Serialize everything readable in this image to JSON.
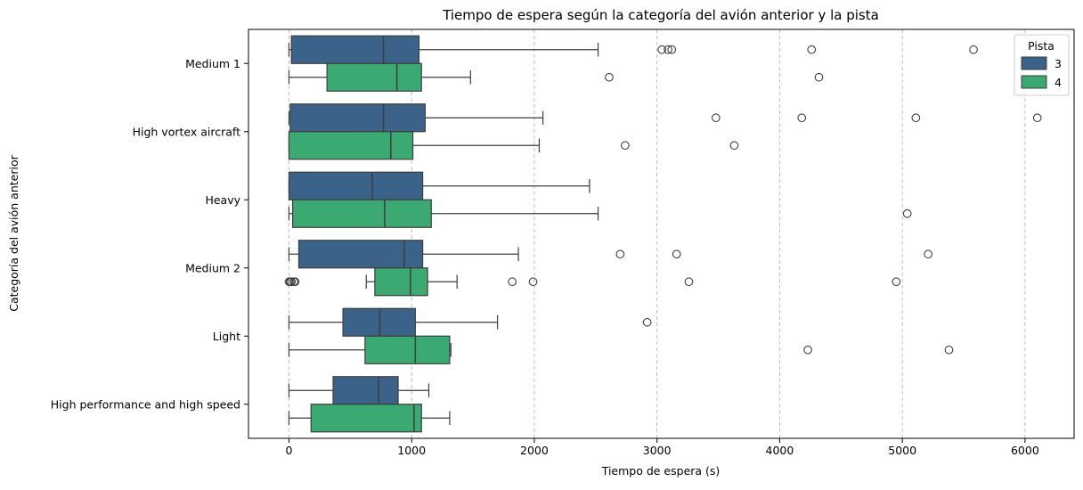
{
  "chart_data": {
    "type": "boxplot",
    "orientation": "horizontal",
    "title": "Tiempo de espera según la categoría del avión anterior y la pista",
    "xlabel": "Tiempo de espera (s)",
    "ylabel": "Categoría del avión anterior",
    "xlim": [
      -330,
      6400
    ],
    "x_ticks": [
      0,
      1000,
      2000,
      3000,
      4000,
      5000,
      6000
    ],
    "x_tick_labels": [
      "0",
      "1000",
      "2000",
      "3000",
      "4000",
      "5000",
      "6000"
    ],
    "grid": "x-dashed",
    "legend": {
      "title": "Pista",
      "placement": "top-right"
    },
    "categories": [
      "Medium 1",
      "High vortex aircraft",
      "Heavy",
      "Medium 2",
      "Light",
      "High performance and high speed"
    ],
    "series": [
      {
        "name": "3",
        "color": "#3b638a",
        "boxes": [
          {
            "whislo": 0,
            "q1": 20,
            "median": 770,
            "q3": 1060,
            "whishi": 2520,
            "fliers": [
              3040,
              3090,
              3120,
              4260,
              5580
            ]
          },
          {
            "whislo": 0,
            "q1": 10,
            "median": 770,
            "q3": 1110,
            "whishi": 2070,
            "fliers": [
              3480,
              4180,
              5110,
              6100
            ]
          },
          {
            "whislo": 0,
            "q1": 0,
            "median": 680,
            "q3": 1090,
            "whishi": 2450,
            "fliers": []
          },
          {
            "whislo": 0,
            "q1": 80,
            "median": 940,
            "q3": 1090,
            "whishi": 1870,
            "fliers": [
              2700,
              3160,
              5210
            ]
          },
          {
            "whislo": 0,
            "q1": 440,
            "median": 740,
            "q3": 1030,
            "whishi": 1700,
            "fliers": [
              2920
            ]
          },
          {
            "whislo": 0,
            "q1": 360,
            "median": 730,
            "q3": 890,
            "whishi": 1140,
            "fliers": []
          }
        ]
      },
      {
        "name": "4",
        "color": "#3aaa72",
        "boxes": [
          {
            "whislo": 0,
            "q1": 310,
            "median": 880,
            "q3": 1080,
            "whishi": 1480,
            "fliers": [
              2610,
              4320
            ]
          },
          {
            "whislo": 0,
            "q1": 0,
            "median": 830,
            "q3": 1010,
            "whishi": 2040,
            "fliers": [
              2740,
              3630
            ]
          },
          {
            "whislo": 0,
            "q1": 30,
            "median": 780,
            "q3": 1160,
            "whishi": 2520,
            "fliers": [
              5040
            ]
          },
          {
            "whislo": 630,
            "q1": 700,
            "median": 990,
            "q3": 1130,
            "whishi": 1370,
            "fliers": [
              0,
              10,
              20,
              40,
              50,
              1820,
              1990,
              3260,
              4950
            ]
          },
          {
            "whislo": 0,
            "q1": 620,
            "median": 1030,
            "q3": 1310,
            "whishi": 1320,
            "fliers": [
              4230,
              5380
            ]
          },
          {
            "whislo": 0,
            "q1": 180,
            "median": 1020,
            "q3": 1080,
            "whishi": 1310,
            "fliers": []
          }
        ]
      }
    ]
  }
}
